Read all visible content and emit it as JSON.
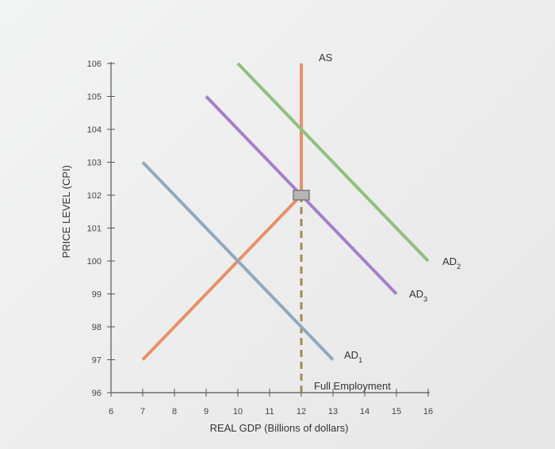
{
  "chart_data": {
    "type": "line",
    "title": "",
    "xlabel": "REAL GDP (Billions of dollars)",
    "ylabel": "PRICE LEVEL (CPI)",
    "xlim": [
      6,
      16
    ],
    "ylim": [
      96,
      106
    ],
    "x_ticks": [
      "6",
      "7",
      "8",
      "9",
      "10",
      "11",
      "12",
      "13",
      "14",
      "15",
      "16"
    ],
    "y_ticks": [
      "96",
      "97",
      "98",
      "99",
      "100",
      "101",
      "102",
      "103",
      "104",
      "105",
      "106"
    ],
    "grid": false,
    "series": [
      {
        "name": "AS",
        "label_main": "AS",
        "label_sub": "",
        "color": "#e8906a",
        "points": [
          [
            7,
            97
          ],
          [
            12,
            102
          ],
          [
            12,
            106
          ]
        ]
      },
      {
        "name": "AD1",
        "label_main": "AD",
        "label_sub": "1",
        "color": "#8fa9bf",
        "points": [
          [
            7,
            103
          ],
          [
            13,
            97
          ]
        ]
      },
      {
        "name": "AD3",
        "label_main": "AD",
        "label_sub": "3",
        "color": "#a57fca",
        "points": [
          [
            9,
            105
          ],
          [
            15,
            99
          ]
        ]
      },
      {
        "name": "AD2",
        "label_main": "AD",
        "label_sub": "2",
        "color": "#8fc07d",
        "points": [
          [
            10,
            106
          ],
          [
            16,
            100
          ]
        ]
      }
    ],
    "full_employment": {
      "label": "Full Employment",
      "x": 12,
      "color": "#a28a56"
    },
    "marker": {
      "x": 12,
      "y": 102,
      "color": "#b5b5b5"
    }
  }
}
